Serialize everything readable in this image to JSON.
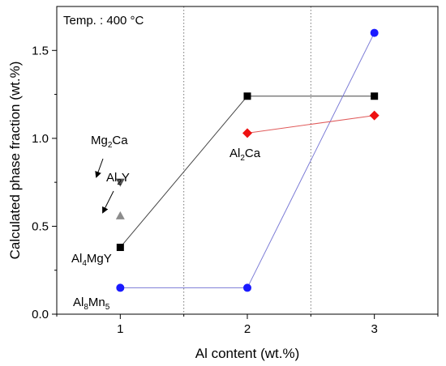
{
  "chart_data": {
    "type": "scatter",
    "title": "",
    "xlabel": "Al content (wt.%)",
    "ylabel": "Calculated phase fraction (wt.%)",
    "xlim": [
      0.5,
      3.5
    ],
    "ylim": [
      0.0,
      1.75
    ],
    "x_ticks": [
      1,
      2,
      3
    ],
    "x_tick_labels": [
      "1",
      "2",
      "3"
    ],
    "y_ticks": [
      0.0,
      0.5,
      1.0,
      1.5
    ],
    "y_tick_labels": [
      "0.0",
      "0.5",
      "1.0",
      "1.5"
    ],
    "vertical_dotted_lines_x": [
      1.5,
      2.5
    ],
    "legend": "none",
    "annotation_box": "Temp. : 400 °C",
    "series": [
      {
        "label_parts": [
          [
            "Al",
            false
          ],
          [
            "4",
            true
          ],
          [
            "MgY",
            false
          ]
        ],
        "marker": "square",
        "color": "#000000",
        "line_color": "#444444",
        "x": [
          1,
          2,
          3
        ],
        "y": [
          0.38,
          1.24,
          1.24
        ]
      },
      {
        "label_parts": [
          [
            "Al",
            false
          ],
          [
            "8",
            true
          ],
          [
            "Mn",
            false
          ],
          [
            "5",
            true
          ]
        ],
        "marker": "circle",
        "color": "#1a1aff",
        "line_color": "#7b7bd6",
        "x": [
          1,
          2,
          3
        ],
        "y": [
          0.15,
          0.15,
          1.6
        ]
      },
      {
        "label_parts": [
          [
            "Al",
            false
          ],
          [
            "2",
            true
          ],
          [
            "Ca",
            false
          ]
        ],
        "marker": "diamond",
        "color": "#ee1111",
        "line_color": "#e05a5a",
        "x": [
          2,
          3
        ],
        "y": [
          1.03,
          1.13
        ]
      },
      {
        "label_parts": [
          [
            "Mg",
            false
          ],
          [
            "2",
            true
          ],
          [
            "Ca",
            false
          ]
        ],
        "marker": "triangle-down",
        "color": "#555555",
        "line_color": "",
        "x": [
          1
        ],
        "y": [
          0.75
        ]
      },
      {
        "label_parts": [
          [
            "Al",
            false
          ],
          [
            "2",
            true
          ],
          [
            "Y",
            false
          ]
        ],
        "marker": "triangle-up",
        "color": "#8c8c8c",
        "line_color": "",
        "x": [
          1
        ],
        "y": [
          0.56
        ]
      }
    ]
  }
}
